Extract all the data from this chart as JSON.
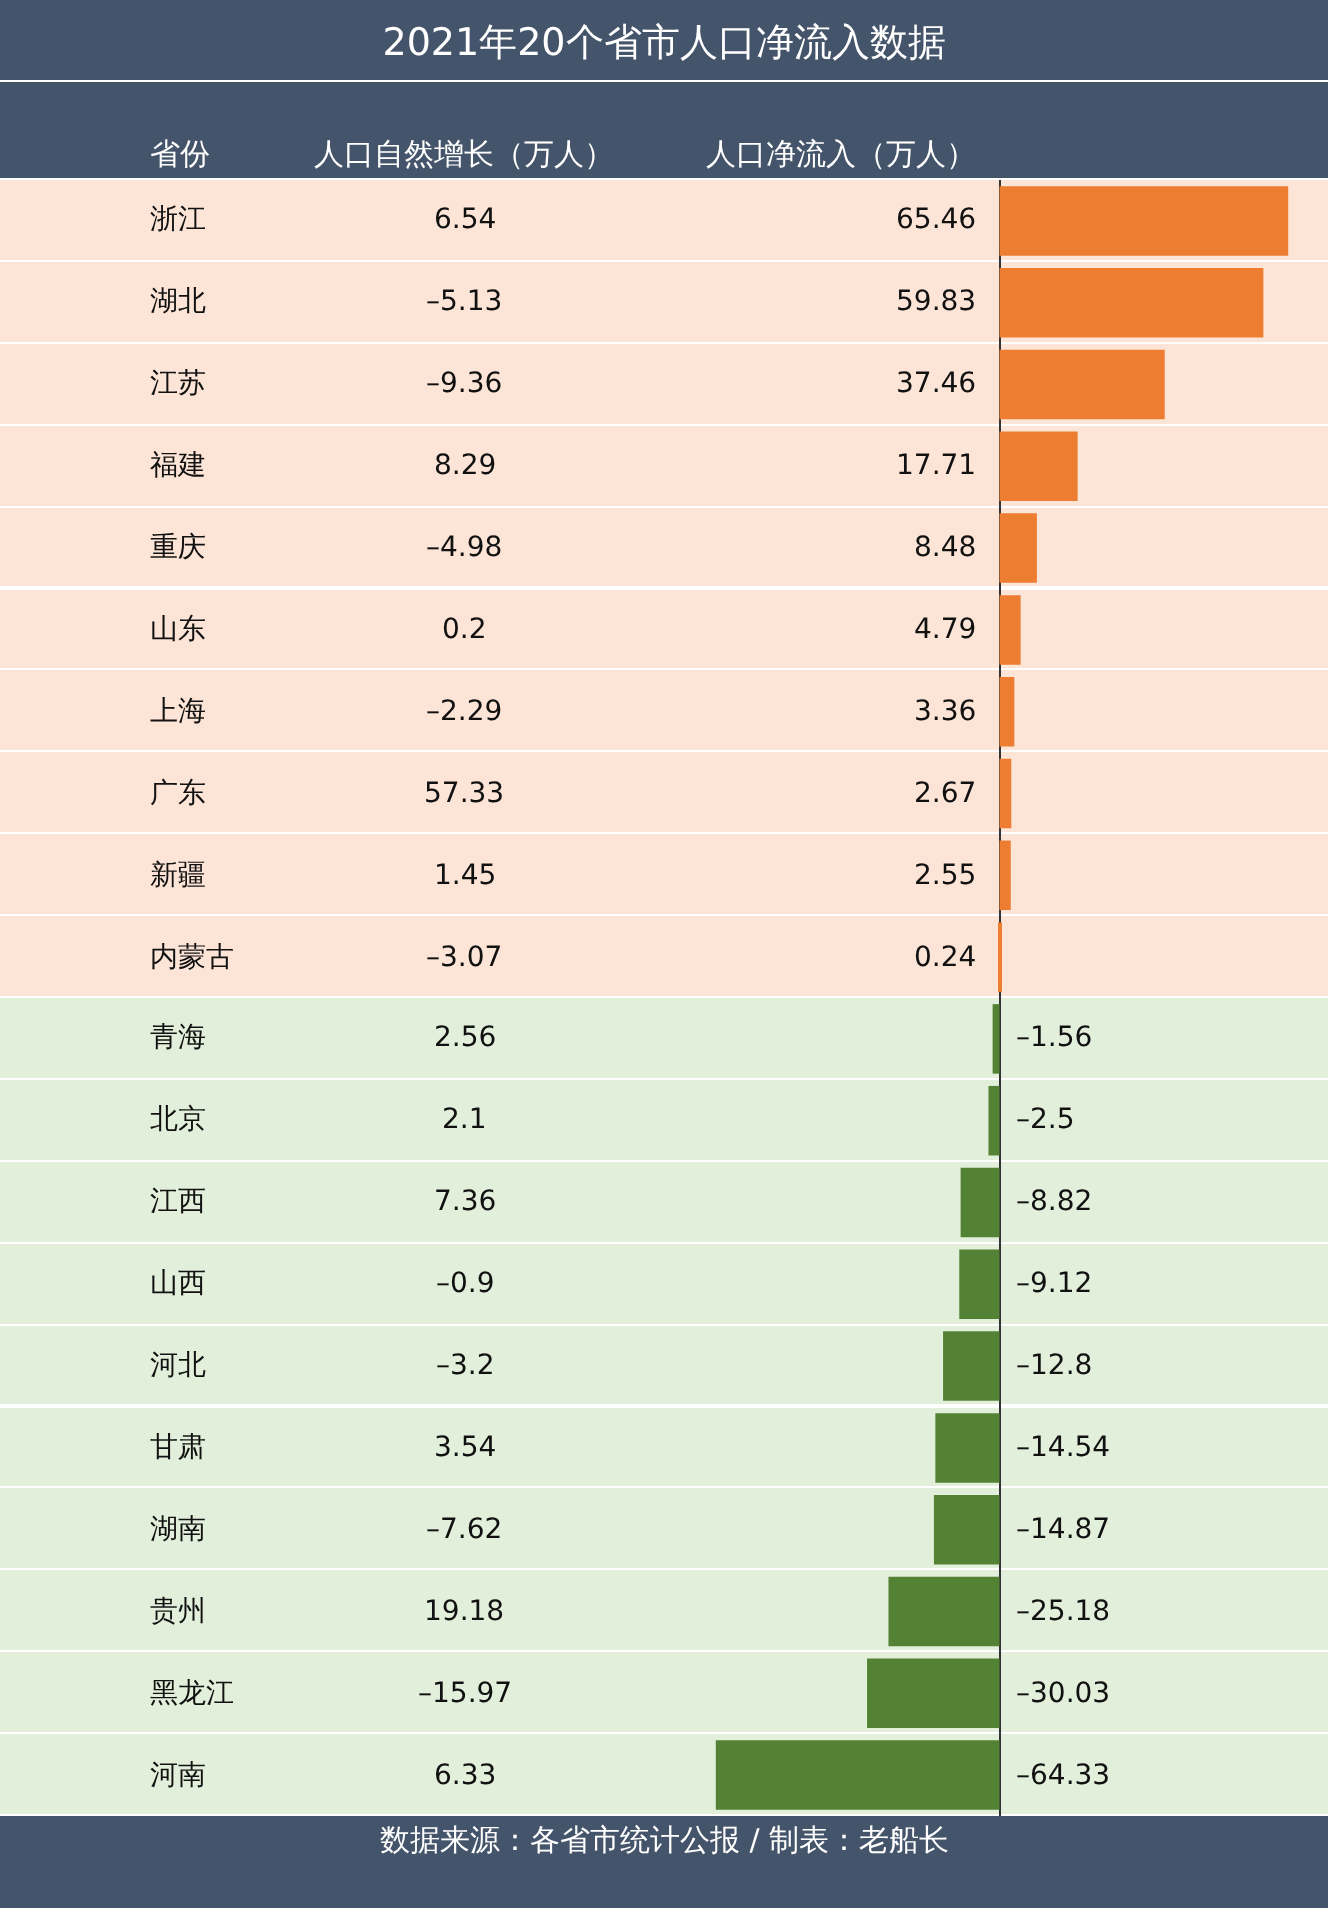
{
  "chart_data": {
    "type": "bar",
    "orientation": "horizontal",
    "title": "2021年20个省市人口净流入数据",
    "ylabel": "省份",
    "categories": [
      "浙江",
      "湖北",
      "江苏",
      "福建",
      "重庆",
      "山东",
      "上海",
      "广东",
      "新疆",
      "内蒙古",
      "青海",
      "北京",
      "江西",
      "山西",
      "河北",
      "甘肃",
      "湖南",
      "贵州",
      "黑龙江",
      "河南"
    ],
    "series": [
      {
        "name": "人口净流入（万人）",
        "values": [
          65.46,
          59.83,
          37.46,
          17.71,
          8.48,
          4.79,
          3.36,
          2.67,
          2.55,
          0.24,
          -1.56,
          -2.5,
          -8.82,
          -9.12,
          -12.8,
          -14.54,
          -14.87,
          -25.18,
          -30.03,
          -64.33
        ],
        "value_labels": [
          "65.46",
          "59.83",
          "37.46",
          "17.71",
          "8.48",
          "4.79",
          "3.36",
          "2.67",
          "2.55",
          "0.24",
          "–1.56",
          "–2.5",
          "–8.82",
          "–9.12",
          "–12.8",
          "–14.54",
          "–14.87",
          "–25.18",
          "–30.03",
          "–64.33"
        ],
        "colors": [
          "#ed7d31",
          "#ed7d31",
          "#ed7d31",
          "#ed7d31",
          "#ed7d31",
          "#ed7d31",
          "#ed7d31",
          "#ed7d31",
          "#ed7d31",
          "#ed7d31",
          "#548235",
          "#548235",
          "#548235",
          "#548235",
          "#548235",
          "#548235",
          "#548235",
          "#548235",
          "#548235",
          "#548235"
        ]
      }
    ],
    "annotations": [
      "人口自然增长（万人）",
      "6.54",
      "–5.13",
      "–9.36",
      "8.29",
      "–4.98",
      "0.2",
      "–2.29",
      "57.33",
      "1.45",
      "–3.07",
      "2.56",
      "2.1",
      "7.36",
      "–0.9",
      "–3.2",
      "3.54",
      "–7.62",
      "19.18",
      "–15.97",
      "6.33",
      "数据来源：各省市统计公报 / 制表：老船长"
    ]
  }
}
